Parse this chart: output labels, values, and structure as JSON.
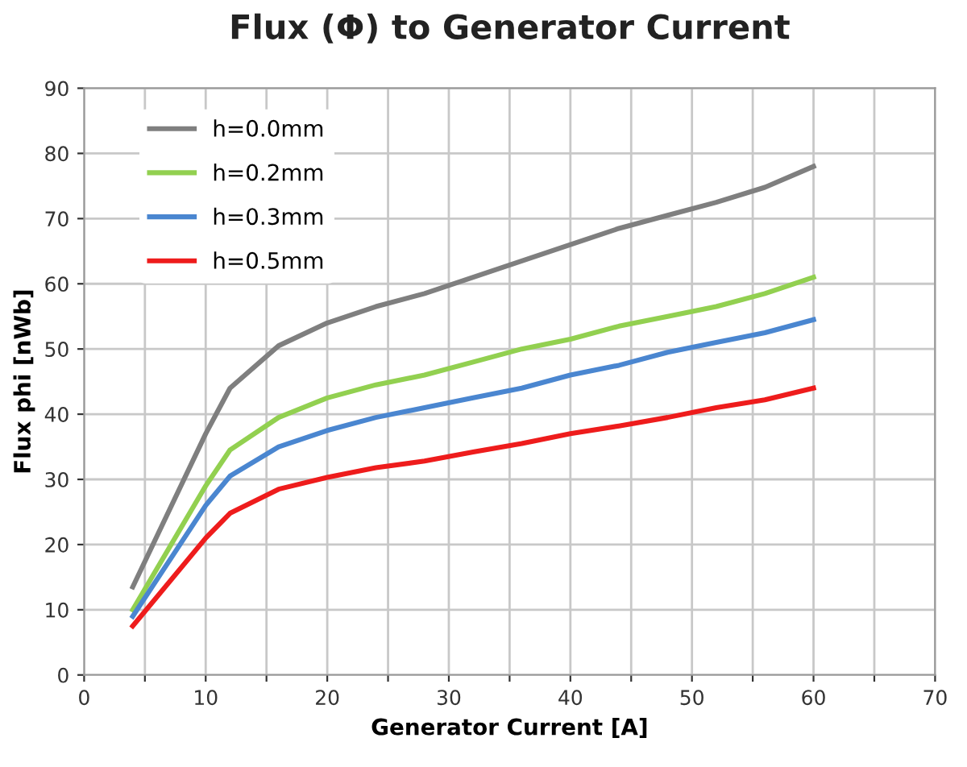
{
  "chart_data": {
    "type": "line",
    "title": "Flux (Φ) to Generator Current",
    "xlabel": "Generator Current [A]",
    "ylabel": "Flux phi [nWb]",
    "x": [
      4,
      10,
      12,
      16,
      20,
      24,
      28,
      32,
      36,
      40,
      44,
      48,
      52,
      56,
      60
    ],
    "series": [
      {
        "name": "h=0.0mm",
        "color": "#7f7f7f",
        "values": [
          13.5,
          37,
          44,
          50.5,
          54,
          56.5,
          58.5,
          61,
          63.5,
          66,
          68.5,
          70.5,
          72.5,
          74.8,
          78
        ]
      },
      {
        "name": "h=0.2mm",
        "color": "#92d050",
        "values": [
          10,
          29,
          34.5,
          39.5,
          42.5,
          44.5,
          46,
          48,
          50,
          51.5,
          53.5,
          55,
          56.5,
          58.5,
          61
        ]
      },
      {
        "name": "h=0.3mm",
        "color": "#4a86d0",
        "values": [
          9,
          26,
          30.5,
          35,
          37.5,
          39.5,
          41,
          42.5,
          44,
          46,
          47.5,
          49.5,
          51,
          52.5,
          54.5
        ]
      },
      {
        "name": "h=0.5mm",
        "color": "#ee1c1c",
        "values": [
          7.5,
          21,
          24.8,
          28.5,
          30.3,
          31.8,
          32.8,
          34.2,
          35.5,
          37,
          38.2,
          39.5,
          41,
          42.2,
          44
        ]
      }
    ],
    "xlim": [
      0,
      70
    ],
    "ylim": [
      0,
      90
    ],
    "xticks": [
      0,
      {
        "value": 5,
        "label": null
      },
      10,
      {
        "value": 15,
        "label": null
      },
      20,
      {
        "value": 25,
        "label": null
      },
      30,
      {
        "value": 35,
        "label": null
      },
      40,
      {
        "value": 45,
        "label": null
      },
      50,
      {
        "value": 55,
        "label": null
      },
      60,
      {
        "value": 65,
        "label": null
      },
      70
    ],
    "yticks": [
      0,
      10,
      20,
      30,
      40,
      50,
      60,
      70,
      80,
      90
    ],
    "grid": true,
    "legend": "top left",
    "marker": "none",
    "line_style": "solid"
  }
}
